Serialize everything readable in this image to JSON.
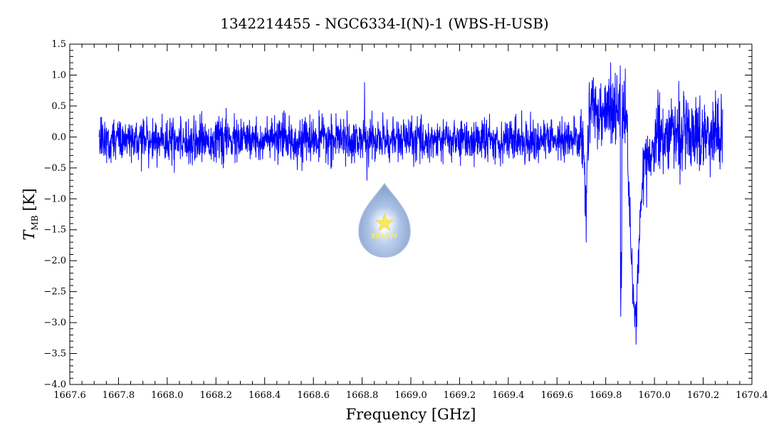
{
  "chart_data": {
    "type": "line",
    "title": "1342214455 - NGC6334-I(N)-1 (WBS-H-USB)",
    "xlabel": "Frequency [GHz]",
    "ylabel_symbol": "T",
    "ylabel_subscript": "MB",
    "ylabel_unit": "[K]",
    "xlim": [
      1667.6,
      1670.4
    ],
    "ylim": [
      -4.0,
      1.5
    ],
    "x_ticks": [
      1667.6,
      1667.8,
      1668.0,
      1668.2,
      1668.4,
      1668.6,
      1668.8,
      1669.0,
      1669.2,
      1669.4,
      1669.6,
      1669.8,
      1670.0,
      1670.2,
      1670.4
    ],
    "x_tick_labels": [
      "1667.6",
      "1667.8",
      "1668.0",
      "1668.2",
      "1668.4",
      "1668.6",
      "1668.8",
      "1669.0",
      "1669.2",
      "1669.4",
      "1669.6",
      "1669.8",
      "1670.0",
      "1670.2",
      "1670.4"
    ],
    "y_ticks": [
      1.5,
      1.0,
      0.5,
      0.0,
      -0.5,
      -1.0,
      -1.5,
      -2.0,
      -2.5,
      -3.0,
      -3.5,
      -4.0
    ],
    "y_tick_labels": [
      "1.5",
      "1.0",
      "0.5",
      "0.0",
      "−0.5",
      "−1.0",
      "−1.5",
      "−2.0",
      "−2.5",
      "−3.0",
      "−3.5",
      "−4.0"
    ],
    "grid": false,
    "series": [
      {
        "color": "#0000ff",
        "x_range": [
          1667.72,
          1670.28
        ],
        "noise_rms": 0.17,
        "features": [
          {
            "x": 1668.81,
            "y": 0.88
          },
          {
            "x": 1668.82,
            "y": -0.7
          },
          {
            "x": 1669.705,
            "y": -0.5
          },
          {
            "x": 1669.715,
            "y": -1.2
          },
          {
            "x": 1669.72,
            "y": -1.7
          },
          {
            "x": 1669.728,
            "y": 0.1
          },
          {
            "x": 1669.8,
            "y": 0.6
          },
          {
            "x": 1669.82,
            "y": 1.2
          },
          {
            "x": 1669.86,
            "y": 1.15
          },
          {
            "x": 1669.862,
            "y": -2.9
          },
          {
            "x": 1669.872,
            "y": 0.3
          },
          {
            "x": 1669.88,
            "y": 1.1
          },
          {
            "x": 1669.89,
            "y": -0.4
          },
          {
            "x": 1669.905,
            "y": -2.0
          },
          {
            "x": 1669.915,
            "y": -2.75
          },
          {
            "x": 1669.925,
            "y": -3.35
          },
          {
            "x": 1669.935,
            "y": -2.2
          },
          {
            "x": 1669.955,
            "y": -1.1
          },
          {
            "x": 1669.985,
            "y": -0.3
          },
          {
            "x": 1670.1,
            "y": 0.9
          },
          {
            "x": 1670.25,
            "y": 0.75
          }
        ]
      }
    ]
  },
  "watermark": {
    "logo_text": "WISH",
    "icon": "water-drop-star-logo"
  },
  "colors": {
    "line": "#0000ff",
    "axes": "#000000",
    "background": "#ffffff"
  }
}
